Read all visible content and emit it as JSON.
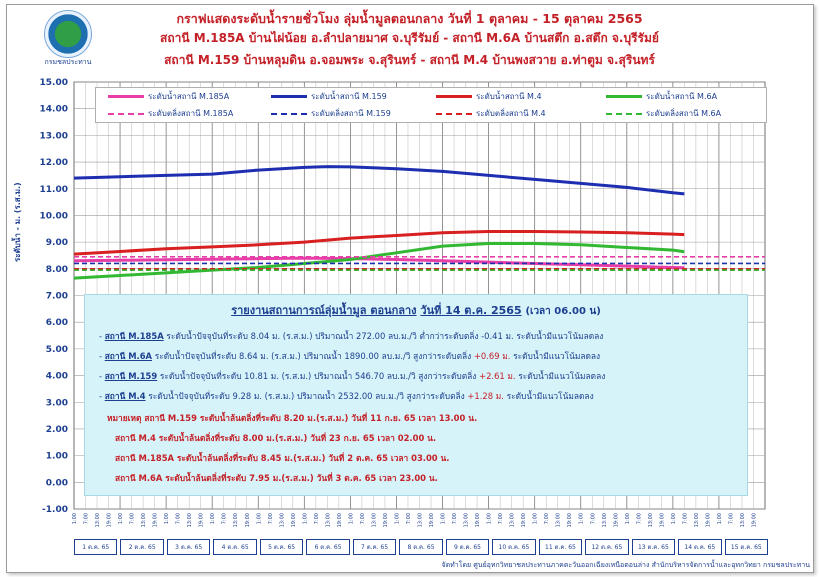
{
  "header": {
    "title": "กราฟแสดงระดับน้ำรายชั่วโมง ลุ่มน้ำมูลตอนกลาง วันที่ 1 ตุลาคม - 15 ตุลาคม 2565",
    "subtitle1": "สถานี M.185A บ้านไผ่น้อย อ.ลำปลายมาศ จ.บุรีรัมย์  -  สถานี M.6A บ้านสตึก อ.สตึก จ.บุรีรัมย์",
    "subtitle2": "สถานี M.159 บ้านหลุมดิน อ.จอมพระ จ.สุรินทร์  -  สถานี M.4 บ้านพงสวาย อ.ท่าตูม จ.สุรินทร์",
    "logo_caption": "กรมชลประทาน"
  },
  "chart_data": {
    "type": "line",
    "ylabel": "ระดับน้ำ - ม. (ร.ส.ม.)",
    "ylim": [
      -1,
      15
    ],
    "yticks": [
      "15.00",
      "14.00",
      "13.00",
      "12.00",
      "11.00",
      "10.00",
      "9.00",
      "8.00",
      "7.00",
      "6.00",
      "5.00",
      "4.00",
      "3.00",
      "2.00",
      "1.00",
      "0.00",
      "-1.00"
    ],
    "xtick_labels": [
      "1:00",
      "7:00",
      "13:00",
      "19:00"
    ],
    "x_days": [
      "1 ต.ค. 65",
      "2 ต.ค. 65",
      "3 ต.ค. 65",
      "4 ต.ค. 65",
      "5 ต.ค. 65",
      "6 ต.ค. 65",
      "7 ต.ค. 65",
      "8 ต.ค. 65",
      "9 ต.ค. 65",
      "10 ต.ค. 65",
      "11 ต.ค. 65",
      "12 ต.ค. 65",
      "13 ต.ค. 65",
      "14 ต.ค. 65",
      "15 ต.ค. 65"
    ],
    "grid": true,
    "legend_position": "top",
    "series": [
      {
        "name": "ระดับน้ำสถานี M.185A",
        "color": "#e83ea8",
        "dash": false,
        "x": [
          0,
          1,
          2,
          3,
          4,
          5,
          6,
          7,
          8,
          9,
          10,
          11,
          12,
          13,
          13.25
        ],
        "y": [
          8.3,
          8.32,
          8.34,
          8.36,
          8.38,
          8.4,
          8.38,
          8.35,
          8.3,
          8.25,
          8.2,
          8.15,
          8.1,
          8.05,
          8.04
        ]
      },
      {
        "name": "ระดับน้ำสถานี M.159",
        "color": "#1d2fb0",
        "dash": false,
        "x": [
          0,
          1,
          2,
          3,
          4,
          5,
          5.5,
          6,
          7,
          8,
          9,
          10,
          11,
          12,
          13,
          13.25
        ],
        "y": [
          11.4,
          11.45,
          11.5,
          11.55,
          11.7,
          11.8,
          11.83,
          11.82,
          11.75,
          11.65,
          11.5,
          11.35,
          11.2,
          11.05,
          10.85,
          10.81
        ]
      },
      {
        "name": "ระดับน้ำสถานี M.4",
        "color": "#d92020",
        "dash": false,
        "x": [
          0,
          1,
          2,
          3,
          4,
          5,
          6,
          7,
          8,
          9,
          10,
          11,
          12,
          13,
          13.25
        ],
        "y": [
          8.55,
          8.65,
          8.75,
          8.82,
          8.9,
          9.0,
          9.15,
          9.25,
          9.35,
          9.4,
          9.4,
          9.38,
          9.35,
          9.3,
          9.28
        ]
      },
      {
        "name": "ระดับน้ำสถานี M.6A",
        "color": "#33b833",
        "dash": false,
        "x": [
          0,
          1,
          2,
          3,
          4,
          5,
          6,
          7,
          8,
          9,
          10,
          11,
          12,
          13,
          13.25
        ],
        "y": [
          7.65,
          7.75,
          7.85,
          7.95,
          8.05,
          8.2,
          8.35,
          8.6,
          8.85,
          8.95,
          8.95,
          8.9,
          8.8,
          8.7,
          8.64
        ]
      },
      {
        "name": "ระดับตลิ่งสถานี M.185A",
        "color": "#e83ea8",
        "dash": true,
        "y_const": 8.45
      },
      {
        "name": "ระดับตลิ่งสถานี M.159",
        "color": "#1d2fb0",
        "dash": true,
        "y_const": 8.2
      },
      {
        "name": "ระดับตลิ่งสถานี M.4",
        "color": "#d92020",
        "dash": true,
        "y_const": 8.0
      },
      {
        "name": "ระดับตลิ่งสถานี M.6A",
        "color": "#33b833",
        "dash": true,
        "y_const": 7.95
      }
    ]
  },
  "report": {
    "title": "รายงานสถานการณ์ลุ่มน้ำมูล ตอนกลาง",
    "date": "วันที่ 14 ต.ค. 2565",
    "time": "(เวลา 06.00 น)",
    "rows": [
      {
        "dash": "-",
        "station": "สถานี M.185A",
        "text": "ระดับน้ำปัจจุบันที่ระดับ 8.04 ม. (ร.ส.ม.) ปริมาณน้ำ 272.00  ลบ.ม./วิ ต่ำกว่าระดับตลิ่ง -0.41 ม. ระดับน้ำมีแนวโน้มลดลง",
        "delta": "",
        "tail": ""
      },
      {
        "dash": "-",
        "station": "สถานี M.6A",
        "text": "ระดับน้ำปัจจุบันที่ระดับ 8.64 ม. (ร.ส.ม.) ปริมาณน้ำ 1890.00 ลบ.ม./วิ สูงกว่าระดับตลิ่ง",
        "delta": "+0.69 ม.",
        "tail": "ระดับน้ำมีแนวโน้มลดลง"
      },
      {
        "dash": "-",
        "station": "สถานี M.159",
        "text": "ระดับน้ำปัจจุบันที่ระดับ 10.81 ม. (ร.ส.ม.) ปริมาณน้ำ 546.70 ลบ.ม./วิ สูงกว่าระดับตลิ่ง",
        "delta": "+2.61 ม.",
        "tail": "ระดับน้ำมีแนวโน้มลดลง"
      },
      {
        "dash": "-",
        "station": "สถานี M.4",
        "text": "ระดับน้ำปัจจุบันที่ระดับ 9.28 ม. (ร.ส.ม.) ปริมาณน้ำ 2532.00 ลบ.ม./วิ สูงกว่าระดับตลิ่ง",
        "delta": "+1.28 ม.",
        "tail": "ระดับน้ำมีแนวโน้มลดลง"
      }
    ],
    "notes": [
      "หมายเหตุ   สถานี M.159 ระดับน้ำล้นตลิ่งที่ระดับ 8.20 ม.(ร.ส.ม.) วันที่ 11 ก.ย. 65 เวลา 13.00 น.",
      "สถานี M.4 ระดับน้ำล้นตลิ่งที่ระดับ 8.00 ม.(ร.ส.ม.) วันที่ 23 ก.ย. 65 เวลา 02.00 น.",
      "สถานี M.185A ระดับน้ำล้นตลิ่งที่ระดับ 8.45 ม.(ร.ส.ม.) วันที่ 2 ต.ค. 65 เวลา 03.00 น.",
      "สถานี M.6A ระดับน้ำล้นตลิ่งที่ระดับ 7.95 ม.(ร.ส.ม.) วันที่ 3 ต.ค. 65 เวลา 23.00 น."
    ]
  },
  "footer": {
    "credit": "จัดทำโดย ศูนย์อุทกวิทยาชลประทานภาคตะวันออกเฉียงเหนือตอนล่าง สำนักบริหารจัดการน้ำและอุทกวิทยา กรมชลประทาน"
  }
}
